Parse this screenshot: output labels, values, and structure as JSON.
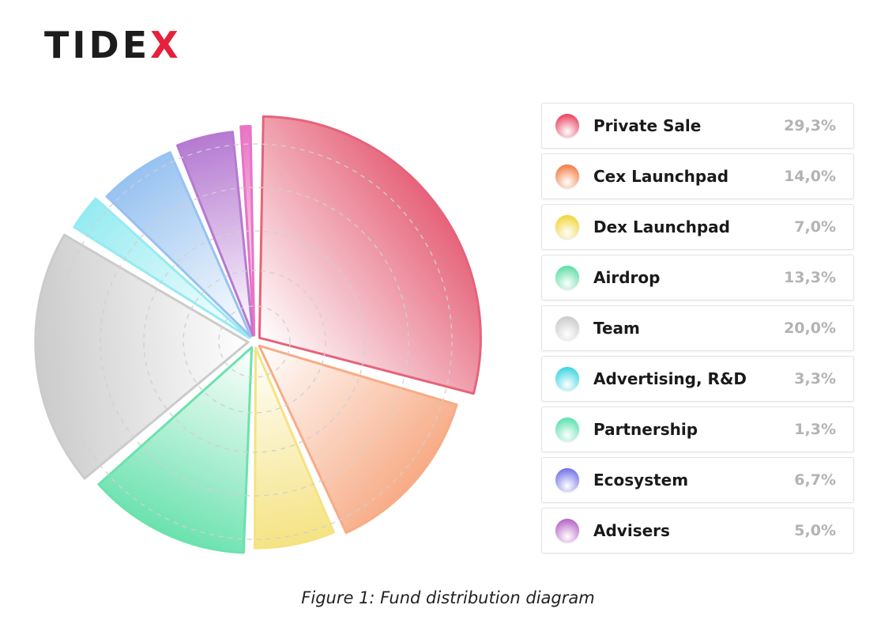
{
  "brand": {
    "logo_main": "TID",
    "logo_mid": "E",
    "logo_end": "X"
  },
  "caption": "Figure 1: Fund distribution diagram",
  "colors": {
    "logo_dark": "#1c1c1c",
    "logo_accent": "#e5213b"
  },
  "chart_data": {
    "type": "pie",
    "categories": [
      "Private Sale",
      "Cex Launchpad",
      "Dex Launchpad",
      "Airdrop",
      "Team",
      "Advertising, R&D",
      "Partnership",
      "Ecosystem",
      "Advisers"
    ],
    "values": [
      29.3,
      14.0,
      7.0,
      13.3,
      20.0,
      3.3,
      1.3,
      6.7,
      5.0
    ],
    "value_labels": [
      "29,3%",
      "14,0%",
      "7,0%",
      "13,3%",
      "20,0%",
      "3,3%",
      "1,3%",
      "6,7%",
      "5,0%"
    ],
    "legend_placement": "right",
    "grid": true,
    "style": "exploded rose pie with varying radii and gradient fills"
  },
  "slices": [
    {
      "name": "Private Sale",
      "color": "#e4566f",
      "light": "#fde5ea",
      "order": 1
    },
    {
      "name": "Cex Launchpad",
      "color": "#f7a57c",
      "light": "#fff1ea",
      "order": 2
    },
    {
      "name": "Dex Launchpad",
      "color": "#f5e178",
      "light": "#fffbe5",
      "order": 3
    },
    {
      "name": "Airdrop",
      "color": "#5fe0a8",
      "light": "#e6fbf1",
      "order": 4
    },
    {
      "name": "Team",
      "color": "#c7c7c7",
      "light": "#f6f6f6",
      "order": 5
    },
    {
      "name": "Advertising, R&D",
      "color": "#8deaf0",
      "light": "#e8fbfc",
      "order": 6
    },
    {
      "name": "Ecosystem",
      "color": "#8fbdf0",
      "light": "#e9f2fc",
      "order": 7
    },
    {
      "name": "Advisers",
      "color": "#b06fcf",
      "light": "#f3e6f8",
      "order": 8
    },
    {
      "name": "Partnership",
      "color": "#e868c2",
      "light": "#fbe3f3",
      "order": 9
    }
  ],
  "legend": [
    {
      "label": "Private Sale",
      "value": "29,3%",
      "dot": "#e93d5a"
    },
    {
      "label": "Cex Launchpad",
      "value": "14,0%",
      "dot": "#f3773d"
    },
    {
      "label": "Dex Launchpad",
      "value": "7,0%",
      "dot": "#f0d430"
    },
    {
      "label": "Airdrop",
      "value": "13,3%",
      "dot": "#56dca2"
    },
    {
      "label": "Team",
      "value": "20,0%",
      "dot": "#c9c9c9"
    },
    {
      "label": "Advertising, R&D",
      "value": "3,3%",
      "dot": "#33d3e0"
    },
    {
      "label": "Partnership",
      "value": "1,3%",
      "dot": "#55e0ab"
    },
    {
      "label": "Ecosystem",
      "value": "6,7%",
      "dot": "#6d6de6"
    },
    {
      "label": "Advisers",
      "value": "5,0%",
      "dot": "#b35ec4"
    }
  ]
}
